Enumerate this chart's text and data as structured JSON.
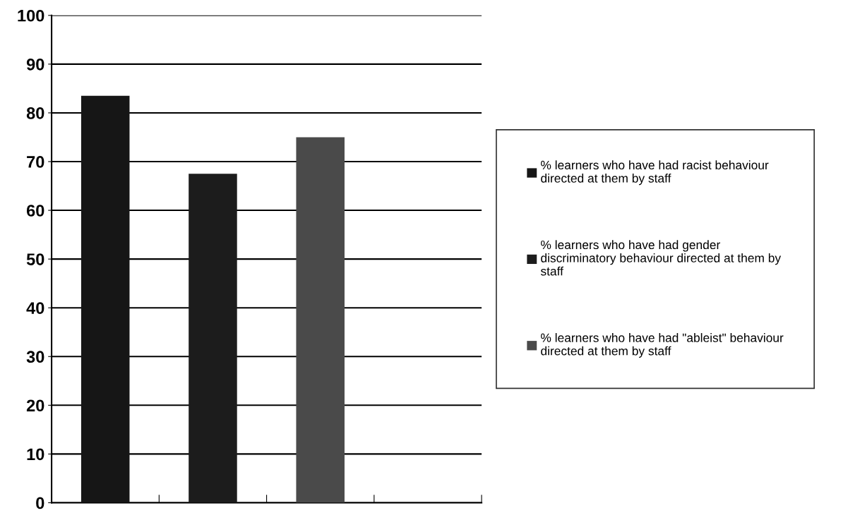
{
  "chart_data": {
    "type": "bar",
    "categories": [
      null,
      null,
      null,
      null
    ],
    "series": [
      {
        "name": "% learners who have had racist behaviour\ndirected at them by staff",
        "color": "#161616",
        "values": [
          83.5,
          null,
          null,
          null
        ]
      },
      {
        "name": "% learners who have had gender\ndiscriminatory behaviour directed at them by\nstaff",
        "color": "#1c1c1c",
        "values": [
          null,
          67.5,
          null,
          null
        ]
      },
      {
        "name": "% learners who have had \"ableist\" behaviour\ndirected at them by staff",
        "color": "#4a4a4a",
        "values": [
          null,
          null,
          75,
          null
        ]
      }
    ],
    "ylim": [
      0,
      100
    ],
    "yticks": [
      0,
      10,
      20,
      30,
      40,
      50,
      60,
      70,
      80,
      90,
      100
    ],
    "grid": "y",
    "legend": "right"
  }
}
